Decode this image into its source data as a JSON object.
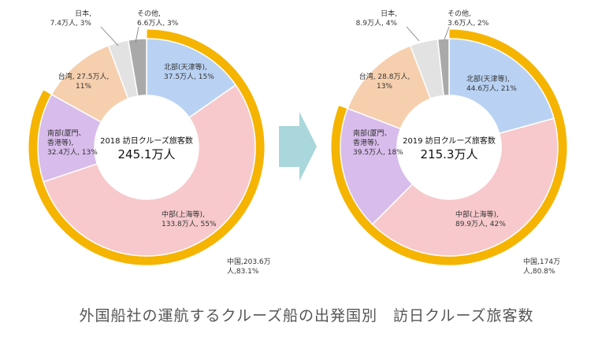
{
  "caption": "外国船社の運航するクルーズ船の出発国別　訪日クルーズ旅客数",
  "colors": {
    "china_outer": "#F5B400",
    "north": "#B9D2F3",
    "central": "#F7C9CC",
    "south": "#D8BCEB",
    "taiwan": "#F6CFAE",
    "japan": "#E2E2E2",
    "other": "#A9A9A9",
    "arrow": "#A9D7DB"
  },
  "chart_data": [
    {
      "type": "pie",
      "center_title": "2018 訪日クルーズ旅客数",
      "center_total": "245.1万人",
      "outer": {
        "name": "中国",
        "value": 203.6,
        "percent": 83.1,
        "label": [
          "中国,203.6万",
          "人,83.1%"
        ]
      },
      "slices": [
        {
          "key": "north",
          "name": "北部(天津等)",
          "value": 37.5,
          "percent": 15,
          "label": [
            "北部(天津等),",
            "37.5万人, 15%"
          ]
        },
        {
          "key": "central",
          "name": "中部(上海等)",
          "value": 133.8,
          "percent": 55,
          "label": [
            "中部(上海等),",
            "133.8万人, 55%"
          ]
        },
        {
          "key": "south",
          "name": "南部(厦門、香港等)",
          "value": 32.4,
          "percent": 13,
          "label": [
            "南部(厦門、",
            "香港等),",
            "32.4万人, 13%"
          ]
        },
        {
          "key": "taiwan",
          "name": "台湾",
          "value": 27.5,
          "percent": 11,
          "label": [
            "台湾, 27.5万人,",
            "11%"
          ]
        },
        {
          "key": "japan",
          "name": "日本",
          "value": 7.4,
          "percent": 3,
          "label": [
            "日本,",
            "7.4万人, 3%"
          ]
        },
        {
          "key": "other",
          "name": "その他",
          "value": 6.6,
          "percent": 3,
          "label": [
            "その他,",
            "6.6万人, 3%"
          ]
        }
      ]
    },
    {
      "type": "pie",
      "center_title": "2019 訪日クルーズ旅客数",
      "center_total": "215.3万人",
      "outer": {
        "name": "中国",
        "value": 174,
        "percent": 80.8,
        "label": [
          "中国,174万",
          "人,80.8%"
        ]
      },
      "slices": [
        {
          "key": "north",
          "name": "北部(天津等)",
          "value": 44.6,
          "percent": 21,
          "label": [
            "北部(天津等),",
            "44.6万人, 21%"
          ]
        },
        {
          "key": "central",
          "name": "中部(上海等)",
          "value": 89.9,
          "percent": 42,
          "label": [
            "中部(上海等),",
            "89.9万人, 42%"
          ]
        },
        {
          "key": "south",
          "name": "南部(厦門、香港等)",
          "value": 39.5,
          "percent": 18,
          "label": [
            "南部(厦門、",
            "香港等),",
            "39.5万人, 18%"
          ]
        },
        {
          "key": "taiwan",
          "name": "台湾",
          "value": 28.8,
          "percent": 13,
          "label": [
            "台湾, 28.8万人,",
            "13%"
          ]
        },
        {
          "key": "japan",
          "name": "日本",
          "value": 8.9,
          "percent": 4,
          "label": [
            "日本,",
            "8.9万人, 4%"
          ]
        },
        {
          "key": "other",
          "name": "その他",
          "value": 3.6,
          "percent": 2,
          "label": [
            "その他,",
            "3.6万人, 2%"
          ]
        }
      ]
    }
  ]
}
